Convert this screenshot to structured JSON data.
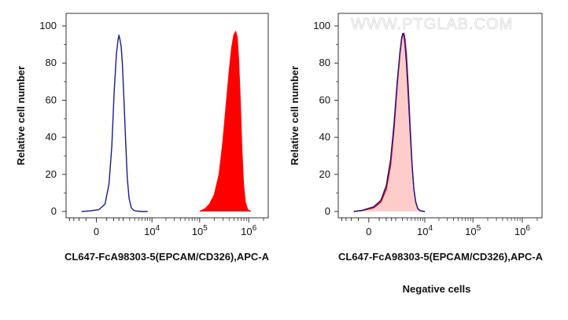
{
  "watermark": "WWW.PTGLAB.COM",
  "caption": "Negative cells",
  "chart_data": [
    {
      "type": "area",
      "xlabel": "CL647-FcA98303-5(EPCAM/CD326),APC-A",
      "ylabel": "Relative cell number",
      "x_scale": "biexponential",
      "ylim": [
        0,
        100
      ],
      "y_ticks": [
        0,
        20,
        40,
        60,
        80,
        100
      ],
      "x_ticks": [
        {
          "value": 0,
          "label": "0",
          "sup": ""
        },
        {
          "value": 10000,
          "label": "10",
          "sup": "4"
        },
        {
          "value": 100000,
          "label": "10",
          "sup": "5"
        },
        {
          "value": 1000000,
          "label": "10",
          "sup": "6"
        }
      ],
      "series": [
        {
          "fill": "none",
          "stroke": "#1a1a8c",
          "points": [
            [
              -800,
              0
            ],
            [
              -300,
              0.3
            ],
            [
              100,
              1
            ],
            [
              400,
              4
            ],
            [
              650,
              15
            ],
            [
              850,
              35
            ],
            [
              1050,
              65
            ],
            [
              1250,
              85
            ],
            [
              1400,
              92
            ],
            [
              1500,
              95
            ],
            [
              1600,
              93
            ],
            [
              1750,
              89
            ],
            [
              1900,
              80
            ],
            [
              2100,
              62
            ],
            [
              2350,
              38
            ],
            [
              2600,
              18
            ],
            [
              2900,
              7
            ],
            [
              3300,
              2
            ],
            [
              3800,
              0.6
            ],
            [
              4500,
              0.2
            ],
            [
              6000,
              0
            ],
            [
              8000,
              0
            ]
          ]
        },
        {
          "fill": "#ff0000",
          "stroke": "#ff0000",
          "points": [
            [
              100000,
              0
            ],
            [
              130000,
              1.5
            ],
            [
              160000,
              4
            ],
            [
              200000,
              9
            ],
            [
              250000,
              20
            ],
            [
              300000,
              38
            ],
            [
              350000,
              58
            ],
            [
              400000,
              75
            ],
            [
              450000,
              88
            ],
            [
              500000,
              95
            ],
            [
              540000,
              97
            ],
            [
              580000,
              94
            ],
            [
              620000,
              82
            ],
            [
              670000,
              60
            ],
            [
              720000,
              35
            ],
            [
              780000,
              15
            ],
            [
              850000,
              5
            ],
            [
              950000,
              1
            ],
            [
              1100000,
              0
            ]
          ]
        }
      ]
    },
    {
      "type": "area",
      "xlabel": "CL647-FcA98303-5(EPCAM/CD326),APC-A",
      "ylabel": "Relative cell number",
      "x_scale": "biexponential",
      "ylim": [
        0,
        100
      ],
      "y_ticks": [
        0,
        20,
        40,
        60,
        80,
        100
      ],
      "x_ticks": [
        {
          "value": 0,
          "label": "0",
          "sup": ""
        },
        {
          "value": 10000,
          "label": "10",
          "sup": "4"
        },
        {
          "value": 100000,
          "label": "10",
          "sup": "5"
        },
        {
          "value": 1000000,
          "label": "10",
          "sup": "6"
        }
      ],
      "series": [
        {
          "fill": "#ffcccc",
          "stroke": "#e00000",
          "points": [
            [
              -800,
              0
            ],
            [
              -300,
              0.5
            ],
            [
              200,
              2
            ],
            [
              600,
              5
            ],
            [
              1000,
              12
            ],
            [
              1400,
              25
            ],
            [
              1800,
              45
            ],
            [
              2200,
              68
            ],
            [
              2600,
              85
            ],
            [
              2900,
              93
            ],
            [
              3100,
              95
            ],
            [
              3300,
              96
            ],
            [
              3500,
              93
            ],
            [
              3800,
              85
            ],
            [
              4200,
              68
            ],
            [
              4700,
              45
            ],
            [
              5200,
              25
            ],
            [
              5700,
              12
            ],
            [
              6300,
              5
            ],
            [
              7000,
              1.5
            ],
            [
              8000,
              0.3
            ],
            [
              10000,
              0
            ]
          ]
        },
        {
          "fill": "none",
          "stroke": "#1a1a8c",
          "points": [
            [
              -800,
              0
            ],
            [
              -300,
              0.6
            ],
            [
              200,
              2.5
            ],
            [
              600,
              6
            ],
            [
              1000,
              14
            ],
            [
              1400,
              28
            ],
            [
              1800,
              48
            ],
            [
              2200,
              70
            ],
            [
              2600,
              86
            ],
            [
              2900,
              94
            ],
            [
              3100,
              96
            ],
            [
              3300,
              95
            ],
            [
              3500,
              90
            ],
            [
              3800,
              80
            ],
            [
              4200,
              63
            ],
            [
              4700,
              42
            ],
            [
              5200,
              24
            ],
            [
              5700,
              12
            ],
            [
              6300,
              5
            ],
            [
              7000,
              1.6
            ],
            [
              8000,
              0.4
            ],
            [
              10000,
              0
            ]
          ]
        }
      ]
    }
  ]
}
